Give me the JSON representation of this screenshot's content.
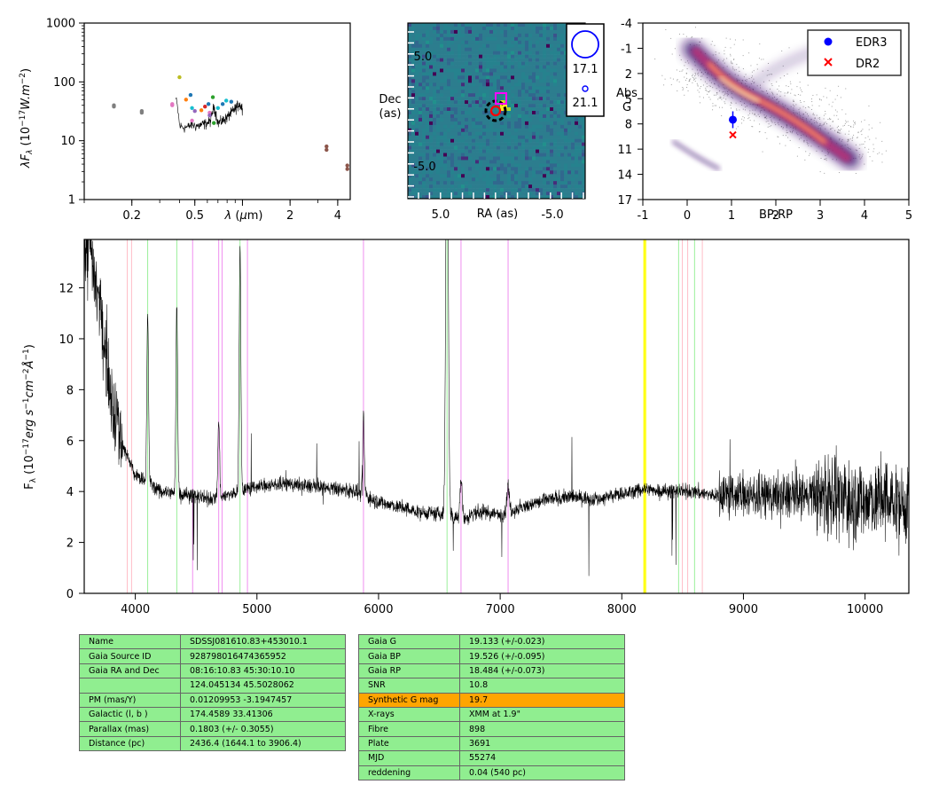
{
  "chart_data": [
    {
      "type": "scatter",
      "panel": "sed",
      "ylabel": "λF_λ (10^-17 W.m^-2)",
      "xlabel": "λ (μm)",
      "x_scale": "log",
      "y_scale": "log",
      "xlim": [
        0.1,
        4.8
      ],
      "ylim": [
        1,
        1000
      ],
      "x_ticks": [
        0.2,
        0.5,
        2,
        4
      ],
      "y_ticks": [
        1,
        10,
        100,
        1000
      ],
      "points": [
        {
          "x": 0.154,
          "y": 40,
          "color": "#7f7f7f"
        },
        {
          "x": 0.154,
          "y": 38,
          "color": "#7f7f7f"
        },
        {
          "x": 0.231,
          "y": 32,
          "color": "#7f7f7f"
        },
        {
          "x": 0.231,
          "y": 30,
          "color": "#7f7f7f"
        },
        {
          "x": 0.36,
          "y": 42,
          "color": "#e377c2"
        },
        {
          "x": 0.36,
          "y": 40,
          "color": "#e377c2"
        },
        {
          "x": 0.4,
          "y": 120,
          "color": "#bcbd22"
        },
        {
          "x": 0.44,
          "y": 50,
          "color": "#ff7f0e"
        },
        {
          "x": 0.47,
          "y": 60,
          "color": "#1f77b4"
        },
        {
          "x": 0.48,
          "y": 36,
          "color": "#17becf"
        },
        {
          "x": 0.48,
          "y": 22,
          "color": "#e377c2"
        },
        {
          "x": 0.5,
          "y": 32,
          "color": "#9467bd"
        },
        {
          "x": 0.55,
          "y": 33,
          "color": "#ff7f0e"
        },
        {
          "x": 0.58,
          "y": 38,
          "color": "#d62728"
        },
        {
          "x": 0.61,
          "y": 42,
          "color": "#1f77b4"
        },
        {
          "x": 0.62,
          "y": 30,
          "color": "#e377c2"
        },
        {
          "x": 0.62,
          "y": 27,
          "color": "#9467bd"
        },
        {
          "x": 0.65,
          "y": 55,
          "color": "#2ca02c"
        },
        {
          "x": 0.66,
          "y": 20,
          "color": "#2ca02c"
        },
        {
          "x": 0.7,
          "y": 36,
          "color": "#17becf"
        },
        {
          "x": 0.75,
          "y": 42,
          "color": "#1f77b4"
        },
        {
          "x": 0.79,
          "y": 48,
          "color": "#17becf"
        },
        {
          "x": 0.85,
          "y": 46,
          "color": "#1f77b4"
        },
        {
          "x": 3.4,
          "y": 8,
          "color": "#8c564b"
        },
        {
          "x": 3.4,
          "y": 7,
          "color": "#8c564b"
        },
        {
          "x": 4.6,
          "y": 3.8,
          "color": "#8c564b"
        },
        {
          "x": 4.6,
          "y": 3.3,
          "color": "#8c564b"
        }
      ],
      "spectrum_anchors": {
        "x": [
          0.38,
          0.4,
          0.42,
          0.45,
          0.48,
          0.5,
          0.53,
          0.56,
          0.6,
          0.63,
          0.66,
          0.7,
          0.75,
          0.8,
          0.85,
          0.9,
          0.95,
          1.0
        ],
        "y": [
          50,
          18,
          17,
          17,
          19,
          18,
          18,
          19,
          20,
          22,
          38,
          20,
          22,
          25,
          30,
          35,
          42,
          36
        ]
      }
    },
    {
      "type": "heatmap",
      "panel": "image",
      "xlabel": "RA (as)",
      "ylabel": "Dec\n(as)",
      "xlim": [
        8.0,
        -8.0
      ],
      "ylim": [
        -8.0,
        8.0
      ],
      "x_ticks": [
        5.0,
        -5.0
      ],
      "y_ticks": [
        5.0,
        -5.0
      ],
      "legend": [
        {
          "label": "17.1",
          "size": "large"
        },
        {
          "label": "21.1",
          "size": "small"
        }
      ]
    },
    {
      "type": "scatter",
      "panel": "hr",
      "xlabel": "BP-RP",
      "ylabel": "Abs\nG",
      "xlim": [
        -1,
        5
      ],
      "ylim": [
        17,
        -4
      ],
      "x_ticks": [
        -1,
        0,
        1,
        2,
        3,
        4,
        5
      ],
      "y_ticks": [
        -4,
        -1,
        2,
        5,
        8,
        11,
        14,
        17
      ],
      "legend_placement": "top-right",
      "series": [
        {
          "name": "EDR3",
          "marker": "circle",
          "color": "#0000ff",
          "x": [
            1.03
          ],
          "y": [
            7.5
          ],
          "yerr": [
            1.0
          ]
        },
        {
          "name": "DR2",
          "marker": "x",
          "color": "#ff0000",
          "x": [
            1.03
          ],
          "y": [
            9.3
          ]
        }
      ]
    },
    {
      "type": "line",
      "panel": "spectrum",
      "ylabel": "F_λ (10^-17 erg s^-1 cm^-2 Å^-1)",
      "xlim": [
        3580,
        10360
      ],
      "ylim": [
        0,
        13.9
      ],
      "x_ticks": [
        4000,
        5000,
        6000,
        7000,
        8000,
        9000,
        10000
      ],
      "y_ticks": [
        0,
        2,
        4,
        6,
        8,
        10,
        12
      ],
      "continuum_anchors": {
        "x": [
          3580,
          3620,
          3700,
          3760,
          3830,
          3900,
          4000,
          4100,
          4200,
          4400,
          4600,
          4700,
          4800,
          5000,
          5200,
          5500,
          5800,
          6000,
          6300,
          6500,
          6700,
          6800,
          7000,
          7200,
          7400,
          7600,
          7800,
          8000,
          8200,
          8400,
          8600,
          8800,
          9000,
          9200,
          9500,
          9800,
          10100,
          10360
        ],
        "y": [
          13.0,
          13.8,
          11.5,
          9.5,
          7.2,
          5.8,
          4.6,
          4.4,
          4.0,
          3.9,
          3.7,
          3.8,
          3.9,
          4.2,
          4.3,
          4.2,
          4.0,
          3.6,
          3.2,
          3.1,
          2.9,
          3.2,
          3.1,
          3.4,
          3.7,
          3.8,
          3.7,
          3.9,
          4.1,
          4.0,
          4.0,
          3.8,
          3.9,
          3.8,
          3.9,
          3.7,
          3.6,
          3.4
        ]
      },
      "emission_lines": [
        {
          "x": 4102,
          "height": 6.5
        },
        {
          "x": 4341,
          "height": 7.5
        },
        {
          "x": 4686,
          "height": 3.0
        },
        {
          "x": 4861,
          "height": 9.5
        },
        {
          "x": 5876,
          "height": 3.2
        },
        {
          "x": 6563,
          "height": 18.0
        },
        {
          "x": 6678,
          "height": 1.5
        },
        {
          "x": 7065,
          "height": 1.0
        }
      ],
      "vertical_lines": [
        {
          "x": 3934,
          "color": "#ffb6c1"
        },
        {
          "x": 3969,
          "color": "#ffb6c1"
        },
        {
          "x": 4102,
          "color": "#90ee90"
        },
        {
          "x": 4341,
          "color": "#90ee90"
        },
        {
          "x": 4471,
          "color": "#ee82ee"
        },
        {
          "x": 4686,
          "color": "#ee82ee"
        },
        {
          "x": 4713,
          "color": "#ee82ee"
        },
        {
          "x": 4861,
          "color": "#90ee90"
        },
        {
          "x": 4922,
          "color": "#ee82ee"
        },
        {
          "x": 5876,
          "color": "#ee82ee"
        },
        {
          "x": 6563,
          "color": "#90ee90"
        },
        {
          "x": 6678,
          "color": "#ee82ee"
        },
        {
          "x": 7065,
          "color": "#ee82ee"
        },
        {
          "x": 8183,
          "color": "#ffff00"
        },
        {
          "x": 8195,
          "color": "#ffff00"
        },
        {
          "x": 8467,
          "color": "#90ee90"
        },
        {
          "x": 8498,
          "color": "#ffb6c1"
        },
        {
          "x": 8542,
          "color": "#ffb6c1"
        },
        {
          "x": 8598,
          "color": "#90ee90"
        },
        {
          "x": 8662,
          "color": "#ffb6c1"
        }
      ]
    }
  ],
  "table_left": [
    {
      "key": "Name",
      "value": "SDSSJ081610.83+453010.1"
    },
    {
      "key": "Gaia Source ID",
      "value": "928798016474365952"
    },
    {
      "key": "Gaia RA and Dec",
      "value": "08:16:10.83    45:30:10.10"
    },
    {
      "key": "",
      "value": "124.045134    45.5028062"
    },
    {
      "key": "PM (mas/Y)",
      "value": "0.01209953    -3.1947457"
    },
    {
      "key": "Galactic (l, b )",
      "value": "174.4589    33.41306"
    },
    {
      "key": "Parallax (mas)",
      "value": "0.1803 (+/- 0.3055)"
    },
    {
      "key": "Distance (pc)",
      "value": "2436.4 (1644.1 to 3906.4)"
    }
  ],
  "table_right": [
    {
      "key": "Gaia G",
      "value": "19.133 (+/-0.023)"
    },
    {
      "key": "Gaia BP",
      "value": "19.526 (+/-0.095)"
    },
    {
      "key": "Gaia RP",
      "value": "18.484 (+/-0.073)"
    },
    {
      "key": "SNR",
      "value": "10.8"
    },
    {
      "key": "Synthetic G mag",
      "value": "19.7",
      "highlight": true
    },
    {
      "key": "X-rays",
      "value": "XMM at 1.9\""
    },
    {
      "key": "Fibre",
      "value": "898"
    },
    {
      "key": "Plate",
      "value": "3691"
    },
    {
      "key": "MJD",
      "value": "55274"
    },
    {
      "key": "reddening",
      "value": "0.04 (540 pc)"
    }
  ]
}
